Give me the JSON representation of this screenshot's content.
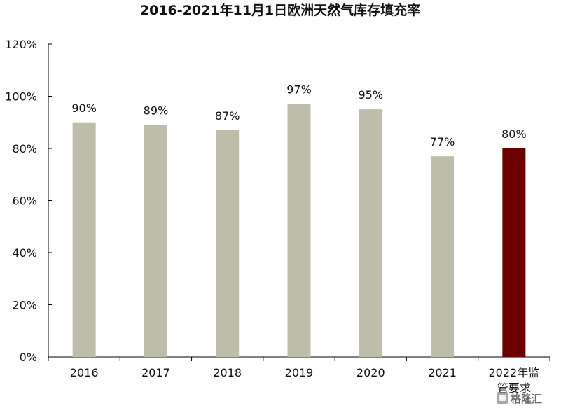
{
  "chart_data": {
    "type": "bar",
    "title": "2016-2021年11月1日欧洲天然气库存填充率",
    "categories": [
      "2016",
      "2017",
      "2018",
      "2019",
      "2020",
      "2021",
      "2022年监管要求"
    ],
    "category_lines": [
      [
        "2016"
      ],
      [
        "2017"
      ],
      [
        "2018"
      ],
      [
        "2019"
      ],
      [
        "2020"
      ],
      [
        "2021"
      ],
      [
        "2022年监",
        "管要求"
      ]
    ],
    "values": [
      90,
      89,
      87,
      97,
      95,
      77,
      80
    ],
    "value_labels": [
      "90%",
      "89%",
      "87%",
      "97%",
      "95%",
      "77%",
      "80%"
    ],
    "ylim": [
      0,
      120
    ],
    "yticks": [
      0,
      20,
      40,
      60,
      80,
      100,
      120
    ],
    "ytick_labels": [
      "0%",
      "20%",
      "40%",
      "60%",
      "80%",
      "100%",
      "120%"
    ],
    "xlabel": "",
    "ylabel": "",
    "grid": false,
    "colors": {
      "bar": "#bdbdaa",
      "highlight": "#6b0000",
      "axis": "#000000"
    },
    "highlight_index": 6
  },
  "watermark": {
    "text": "格隆汇",
    "icon": "gelonghui-logo-icon"
  }
}
